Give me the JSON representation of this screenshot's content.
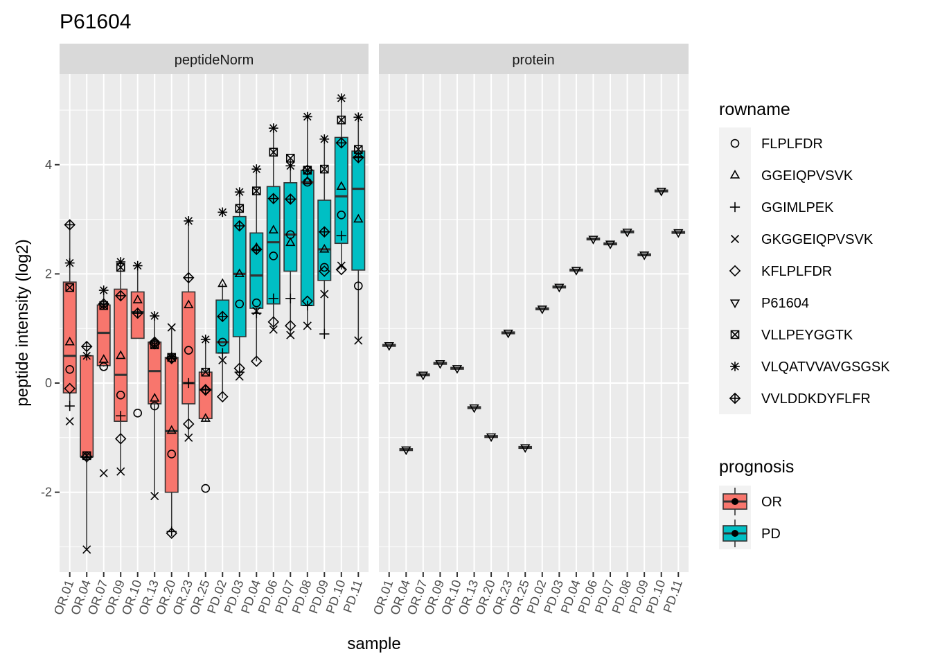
{
  "chart_data": {
    "type": "boxplot",
    "title": "P61604",
    "xlabel": "sample",
    "ylabel": "peptide intensity (log2)",
    "ylim": [
      -3.4,
      5.6
    ],
    "yticks": [
      -2,
      0,
      2,
      4
    ],
    "grid": true,
    "legend_position": "right",
    "samples": [
      "OR.01",
      "OR.04",
      "OR.07",
      "OR.09",
      "OR.10",
      "OR.13",
      "OR.20",
      "OR.23",
      "OR.25",
      "PD.02",
      "PD.03",
      "PD.04",
      "PD.06",
      "PD.07",
      "PD.08",
      "PD.09",
      "PD.10",
      "PD.11"
    ],
    "prognosis": [
      "OR",
      "OR",
      "OR",
      "OR",
      "OR",
      "OR",
      "OR",
      "OR",
      "OR",
      "PD",
      "PD",
      "PD",
      "PD",
      "PD",
      "PD",
      "PD",
      "PD",
      "PD"
    ],
    "colors": {
      "OR": "#F8766D",
      "PD": "#00BFC4"
    },
    "legend_rowname": {
      "title": "rowname",
      "items": [
        {
          "label": "FLPLFDR",
          "shape": "circle"
        },
        {
          "label": "GGEIQPVSVK",
          "shape": "triangle"
        },
        {
          "label": "GGIMLPEK",
          "shape": "plus"
        },
        {
          "label": "GKGGEIQPVSVK",
          "shape": "cross"
        },
        {
          "label": "KFLPLFDR",
          "shape": "diamond"
        },
        {
          "label": "P61604",
          "shape": "triangle-down"
        },
        {
          "label": "VLLPEYGGTK",
          "shape": "square-cross"
        },
        {
          "label": "VLQATVVAVGSGSK",
          "shape": "asterisk"
        },
        {
          "label": "VVLDDKDYFLFR",
          "shape": "diamond-plus"
        }
      ]
    },
    "legend_prognosis": {
      "title": "prognosis",
      "items": [
        {
          "label": "OR",
          "color": "#F8766D"
        },
        {
          "label": "PD",
          "color": "#00BFC4"
        }
      ]
    },
    "panels": [
      {
        "name": "peptideNorm",
        "boxes": [
          {
            "sample": "OR.01",
            "low": -0.45,
            "q1": -0.18,
            "median": 0.5,
            "q3": 1.85,
            "high": 2.9
          },
          {
            "sample": "OR.04",
            "low": -3.05,
            "q1": -1.35,
            "median": -1.35,
            "q3": 0.5,
            "high": 0.67
          },
          {
            "sample": "OR.07",
            "low": 0.3,
            "q1": 0.32,
            "median": 0.92,
            "q3": 1.43,
            "high": 1.7
          },
          {
            "sample": "OR.09",
            "low": -1.6,
            "q1": -0.7,
            "median": 0.15,
            "q3": 1.72,
            "high": 2.2
          },
          {
            "sample": "OR.10",
            "low": 0.82,
            "q1": 0.82,
            "median": 1.3,
            "q3": 1.67,
            "high": 2.15
          },
          {
            "sample": "OR.13",
            "low": -2.05,
            "q1": -0.38,
            "median": 0.22,
            "q3": 0.75,
            "high": 1.22
          },
          {
            "sample": "OR.20",
            "low": -2.75,
            "q1": -2.0,
            "median": -0.88,
            "q3": 0.47,
            "high": 1.02
          },
          {
            "sample": "OR.23",
            "low": -1.0,
            "q1": -0.38,
            "median": 0.0,
            "q3": 1.67,
            "high": 2.97
          },
          {
            "sample": "OR.25",
            "low": -0.7,
            "q1": -0.65,
            "median": -0.12,
            "q3": 0.2,
            "high": 0.8
          },
          {
            "sample": "PD.02",
            "low": -0.28,
            "q1": 0.55,
            "median": 0.75,
            "q3": 1.52,
            "high": 1.82
          },
          {
            "sample": "PD.03",
            "low": 0.1,
            "q1": 0.85,
            "median": 2.0,
            "q3": 3.05,
            "high": 3.5
          },
          {
            "sample": "PD.04",
            "low": 0.4,
            "q1": 1.37,
            "median": 1.97,
            "q3": 2.75,
            "high": 3.92
          },
          {
            "sample": "PD.06",
            "low": 0.98,
            "q1": 1.45,
            "median": 2.58,
            "q3": 3.6,
            "high": 4.65
          },
          {
            "sample": "PD.07",
            "low": 0.85,
            "q1": 2.05,
            "median": 2.72,
            "q3": 3.67,
            "high": 4.12
          },
          {
            "sample": "PD.08",
            "low": 1.05,
            "q1": 1.42,
            "median": 3.68,
            "q3": 3.9,
            "high": 4.88
          },
          {
            "sample": "PD.09",
            "low": 0.9,
            "q1": 1.88,
            "median": 2.45,
            "q3": 3.35,
            "high": 4.47
          },
          {
            "sample": "PD.10",
            "low": 2.08,
            "q1": 2.56,
            "median": 3.42,
            "q3": 4.5,
            "high": 5.2
          },
          {
            "sample": "PD.11",
            "low": 0.78,
            "q1": 2.07,
            "median": 3.56,
            "q3": 4.25,
            "high": 4.87
          }
        ],
        "points": [
          {
            "sample": "OR.01",
            "circle": 0.25,
            "triangle": 0.75,
            "plus": -0.42,
            "cross": -0.7,
            "diamond": -0.1,
            "square-cross": 1.75,
            "asterisk": 2.2,
            "diamond-plus": 2.9
          },
          {
            "sample": "OR.04",
            "plus": -1.37,
            "cross": -3.05,
            "diamond": -1.35,
            "asterisk": 0.5,
            "diamond-plus": 0.67,
            "square-cross": -1.33
          },
          {
            "sample": "OR.07",
            "circle": 0.3,
            "triangle": 0.43,
            "cross": -1.65,
            "square-cross": 1.42,
            "asterisk": 1.7,
            "diamond-plus": 1.45
          },
          {
            "sample": "OR.09",
            "circle": -0.22,
            "triangle": 0.5,
            "plus": -0.6,
            "cross": -1.62,
            "diamond": -1.02,
            "square-cross": 2.12,
            "asterisk": 2.22,
            "diamond-plus": 1.6
          },
          {
            "sample": "OR.10",
            "circle": -0.55,
            "triangle": 1.52,
            "asterisk": 2.15,
            "diamond-plus": 1.28
          },
          {
            "sample": "OR.13",
            "circle": -0.42,
            "triangle": -0.28,
            "cross": -2.07,
            "diamond": 0.75,
            "square-cross": 0.7,
            "asterisk": 1.23,
            "diamond-plus": 0.72
          },
          {
            "sample": "OR.20",
            "circle": -1.3,
            "triangle": -0.87,
            "plus": -2.72,
            "cross": 1.02,
            "diamond": -2.75,
            "square-cross": 0.47,
            "asterisk": 0.48,
            "diamond-plus": 0.45
          },
          {
            "sample": "OR.23",
            "circle": 0.6,
            "triangle": 1.43,
            "plus": 0.0,
            "cross": -1.0,
            "diamond": -0.75,
            "asterisk": 2.97,
            "diamond-plus": 1.93
          },
          {
            "sample": "OR.25",
            "circle": -1.93,
            "triangle": -0.65,
            "diamond": -0.13,
            "square-cross": 0.2,
            "asterisk": 0.8,
            "diamond-plus": -0.12
          },
          {
            "sample": "PD.02",
            "circle": 0.75,
            "triangle": 1.82,
            "plus": 0.55,
            "cross": 0.42,
            "diamond": -0.25,
            "asterisk": 3.13,
            "diamond-plus": 1.22
          },
          {
            "sample": "PD.03",
            "circle": 1.45,
            "triangle": 2.0,
            "plus": 0.2,
            "cross": 0.12,
            "diamond": 0.27,
            "square-cross": 3.2,
            "asterisk": 3.5,
            "diamond-plus": 2.88
          },
          {
            "sample": "PD.04",
            "circle": 1.47,
            "triangle": 2.48,
            "plus": 1.28,
            "cross": 1.32,
            "diamond": 0.4,
            "square-cross": 3.52,
            "asterisk": 3.92,
            "diamond-plus": 2.45
          },
          {
            "sample": "PD.06",
            "circle": 2.33,
            "triangle": 2.8,
            "plus": 1.55,
            "cross": 0.98,
            "diamond": 1.12,
            "square-cross": 4.23,
            "asterisk": 4.67,
            "diamond-plus": 3.38
          },
          {
            "sample": "PD.07",
            "circle": 2.72,
            "triangle": 2.57,
            "plus": 1.55,
            "cross": 0.88,
            "diamond": 1.05,
            "square-cross": 4.12,
            "asterisk": 3.98,
            "diamond-plus": 3.37
          },
          {
            "sample": "PD.08",
            "circle": 3.68,
            "triangle": 3.7,
            "plus": 1.42,
            "cross": 1.05,
            "diamond": 1.5,
            "square-cross": 3.9,
            "asterisk": 4.88,
            "diamond-plus": 3.9
          },
          {
            "sample": "PD.09",
            "circle": 2.12,
            "triangle": 2.45,
            "plus": 0.9,
            "cross": 1.63,
            "diamond": 2.05,
            "square-cross": 3.92,
            "asterisk": 4.47,
            "diamond-plus": 2.77
          },
          {
            "sample": "PD.10",
            "circle": 3.08,
            "triangle": 3.6,
            "plus": 2.7,
            "cross": 2.15,
            "diamond": 2.08,
            "square-cross": 4.82,
            "asterisk": 5.22,
            "diamond-plus": 4.4
          },
          {
            "sample": "PD.11",
            "circle": 1.78,
            "triangle": 3.0,
            "plus": 4.15,
            "cross": 0.78,
            "square-cross": 4.28,
            "asterisk": 4.87,
            "diamond-plus": 4.13
          }
        ]
      },
      {
        "name": "protein",
        "values": [
          0.69,
          -1.22,
          0.15,
          0.36,
          0.27,
          -0.45,
          -0.98,
          0.92,
          -1.18,
          1.36,
          1.76,
          2.07,
          2.64,
          2.55,
          2.77,
          2.35,
          3.52,
          2.76
        ]
      }
    ]
  }
}
